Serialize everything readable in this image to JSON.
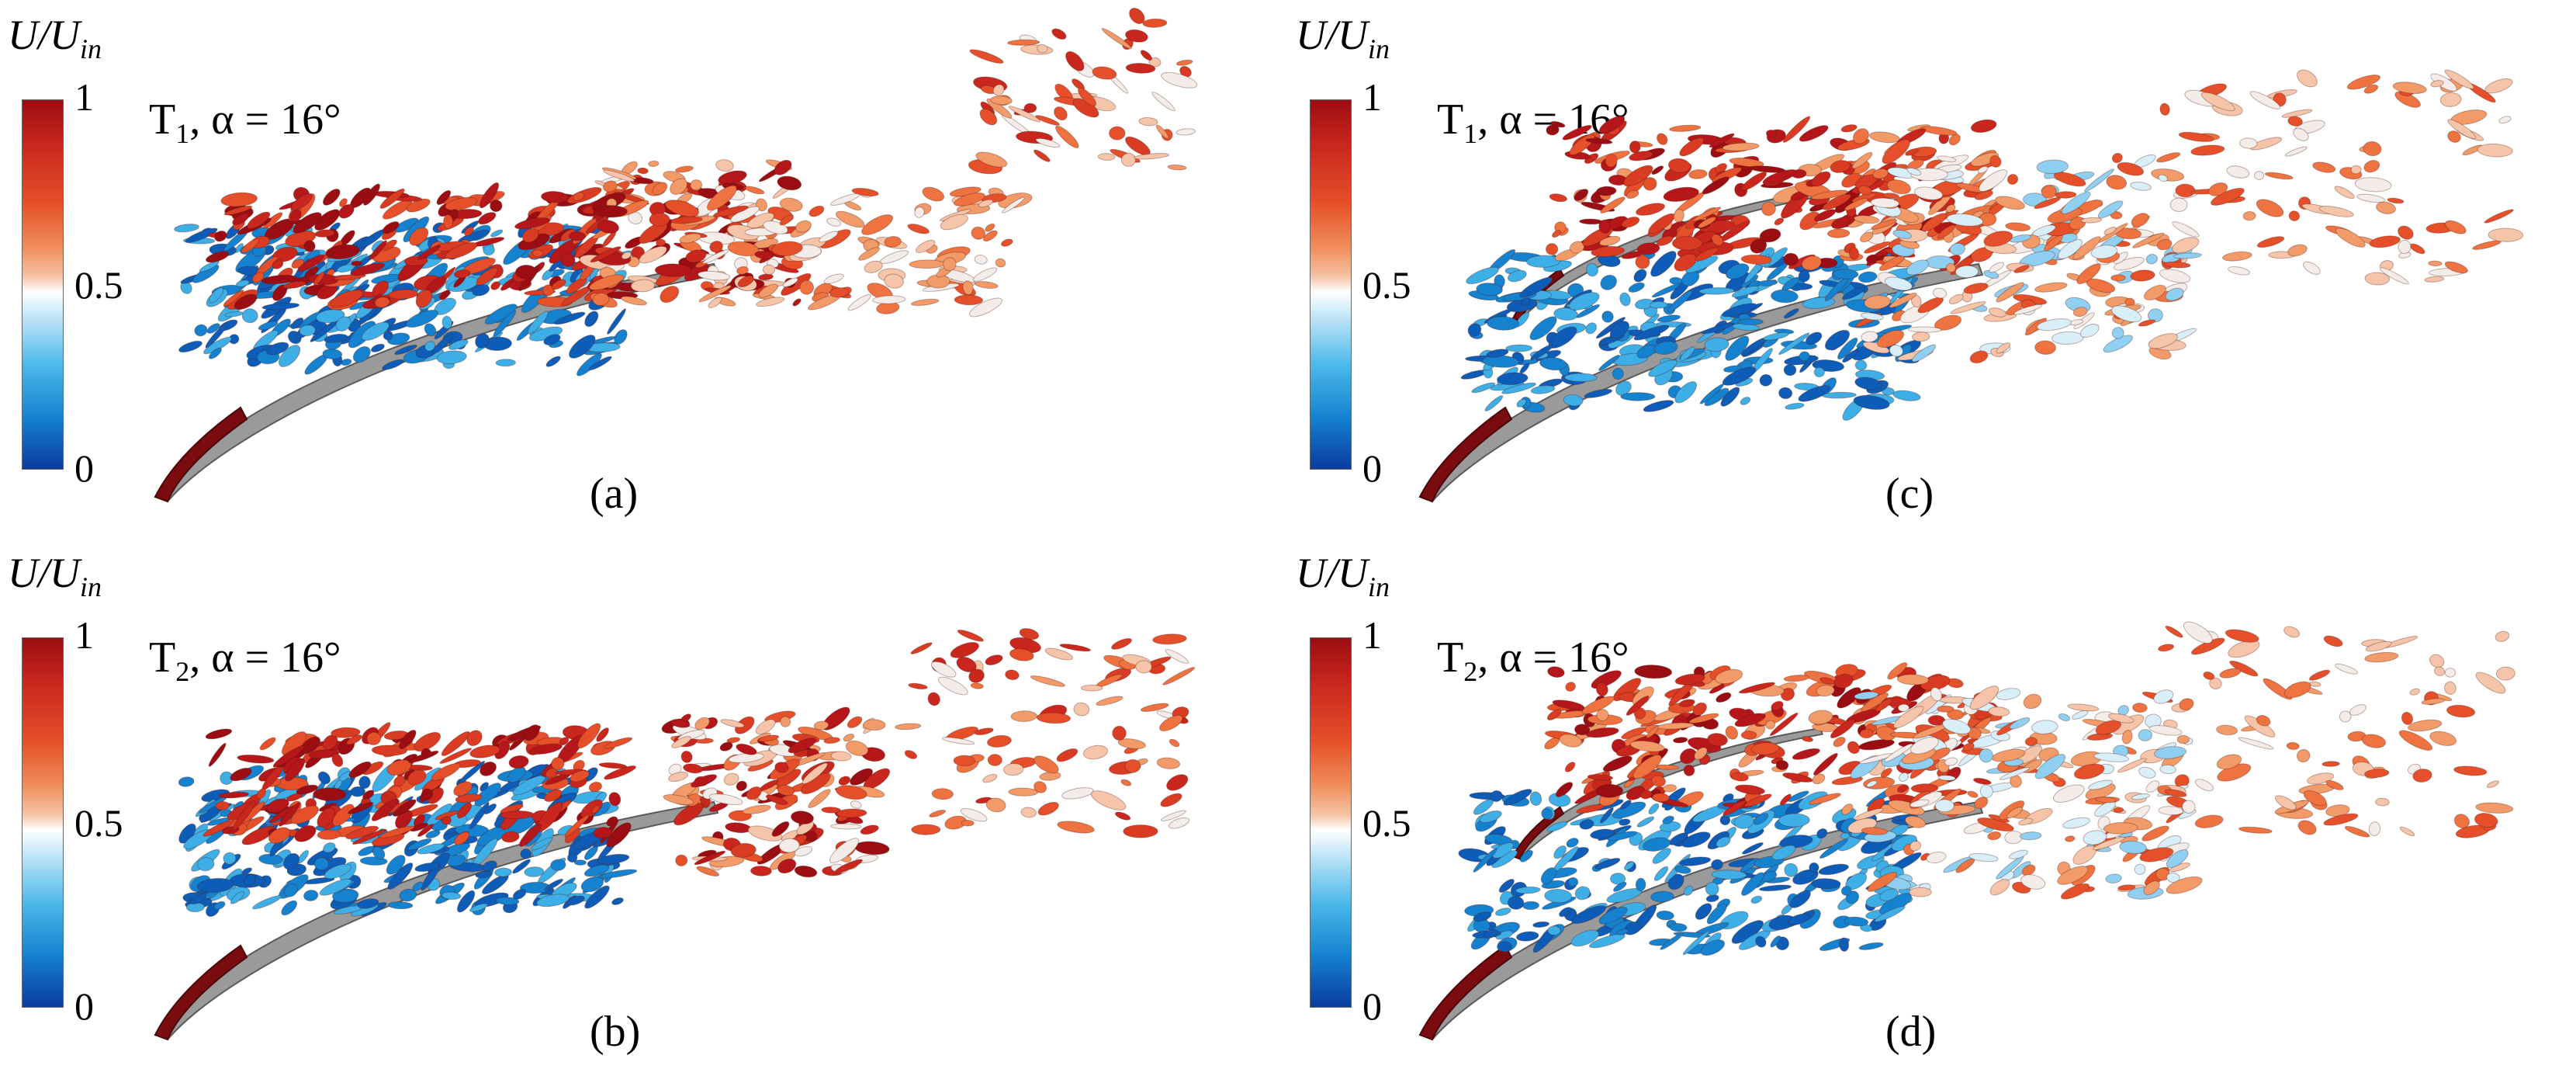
{
  "colorbar": {
    "title_main": "U/U",
    "title_sub": "in",
    "ticks": [
      "1",
      "0.5",
      "0"
    ],
    "colors": {
      "high": "#9a0d12",
      "mid": "#ffffff",
      "low": "#0a3c9e"
    }
  },
  "panels": [
    {
      "id": "a",
      "case_main": "T",
      "case_sub": "1",
      "case_rest": ", α = 16°",
      "label": "(a)"
    },
    {
      "id": "c",
      "case_main": "T",
      "case_sub": "1",
      "case_rest": ", α = 16°",
      "label": "(c)"
    },
    {
      "id": "b",
      "case_main": "T",
      "case_sub": "2",
      "case_rest": ", α = 16°",
      "label": "(b)"
    },
    {
      "id": "d",
      "case_main": "T",
      "case_sub": "2",
      "case_rest": ", α = 16°",
      "label": "(d)"
    }
  ]
}
